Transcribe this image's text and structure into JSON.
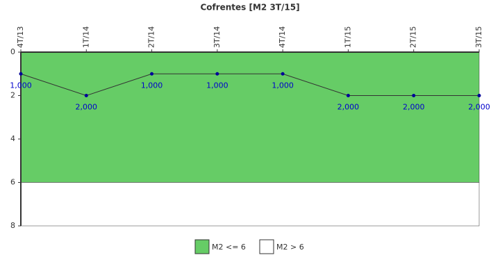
{
  "chart_data": {
    "type": "line",
    "title": "Cofrentes [M2 3T/15]",
    "categories": [
      "4T/13",
      "1T/14",
      "2T/14",
      "3T/14",
      "4T/14",
      "1T/15",
      "2T/15",
      "3T/15"
    ],
    "values": [
      1,
      2,
      1,
      1,
      1,
      2,
      2,
      2
    ],
    "value_labels": [
      "1,000",
      "2,000",
      "1,000",
      "1,000",
      "1,000",
      "2,000",
      "2,000",
      "2,000"
    ],
    "line_color": "#333333",
    "marker_color": "#000099",
    "label_color": "#0000cc",
    "ylim": [
      0,
      8
    ],
    "yticks": [
      0,
      2,
      4,
      6,
      8
    ],
    "y_inverted": true,
    "bands": [
      {
        "name": "M2 <= 6",
        "from": 0,
        "to": 6,
        "color": "#66cc66"
      },
      {
        "name": "M2 > 6",
        "from": 6,
        "to": 8,
        "color": "#ffffff"
      }
    ]
  }
}
